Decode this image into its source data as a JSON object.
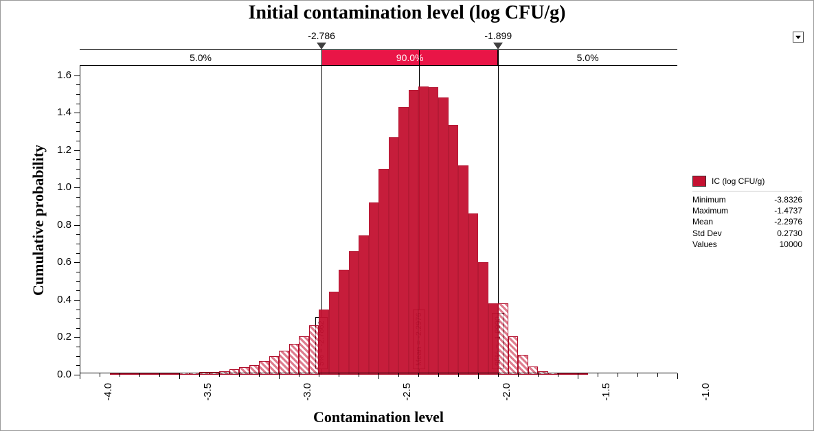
{
  "title": "Initial contamination level (log CFU/g)",
  "xlabel": "Contamination level",
  "ylabel": "Cumulative probability",
  "chart": {
    "type": "histogram",
    "bar_color": "#c41131",
    "bar_border_color": "#b00d2a",
    "tail_hatch": true,
    "background_color": "#ffffff",
    "xlim": [
      -4.0,
      -1.0
    ],
    "ylim": [
      0.0,
      1.65
    ],
    "xticks": [
      -4.0,
      -3.5,
      -3.0,
      -2.5,
      -2.0,
      -1.5,
      -1.0
    ],
    "xticklabels": [
      "-4.0",
      "-3.5",
      "-3.0",
      "-2.5",
      "-2.0",
      "-1.5",
      "-1.0"
    ],
    "yticks": [
      0.0,
      0.2,
      0.4,
      0.6,
      0.8,
      1.0,
      1.2,
      1.4,
      1.6
    ],
    "yticklabels": [
      "0.0",
      "0.2",
      "0.4",
      "0.6",
      "0.8",
      "1.0",
      "1.2",
      "1.4",
      "1.6"
    ],
    "xminor_per_major": 5,
    "yminor_per_major": 4,
    "axis_fontsize": 15,
    "label_fontsize": 22,
    "title_fontsize": 28,
    "bin_width": 0.05,
    "bins": [
      {
        "x": -3.85,
        "h": 0.004
      },
      {
        "x": -3.8,
        "h": 0.005
      },
      {
        "x": -3.75,
        "h": 0.005
      },
      {
        "x": -3.7,
        "h": 0.005
      },
      {
        "x": -3.65,
        "h": 0.006
      },
      {
        "x": -3.6,
        "h": 0.007
      },
      {
        "x": -3.55,
        "h": 0.008
      },
      {
        "x": -3.5,
        "h": 0.01
      },
      {
        "x": -3.45,
        "h": 0.01
      },
      {
        "x": -3.4,
        "h": 0.014
      },
      {
        "x": -3.35,
        "h": 0.016
      },
      {
        "x": -3.3,
        "h": 0.02
      },
      {
        "x": -3.25,
        "h": 0.03
      },
      {
        "x": -3.2,
        "h": 0.04
      },
      {
        "x": -3.15,
        "h": 0.052
      },
      {
        "x": -3.1,
        "h": 0.075
      },
      {
        "x": -3.05,
        "h": 0.1
      },
      {
        "x": -3.0,
        "h": 0.13
      },
      {
        "x": -2.95,
        "h": 0.165
      },
      {
        "x": -2.9,
        "h": 0.205
      },
      {
        "x": -2.85,
        "h": 0.265
      },
      {
        "x": -2.8,
        "h": 0.35
      },
      {
        "x": -2.75,
        "h": 0.445
      },
      {
        "x": -2.7,
        "h": 0.56
      },
      {
        "x": -2.65,
        "h": 0.66
      },
      {
        "x": -2.6,
        "h": 0.745
      },
      {
        "x": -2.55,
        "h": 0.92
      },
      {
        "x": -2.5,
        "h": 1.1
      },
      {
        "x": -2.45,
        "h": 1.27
      },
      {
        "x": -2.4,
        "h": 1.43
      },
      {
        "x": -2.35,
        "h": 1.52
      },
      {
        "x": -2.3,
        "h": 1.54
      },
      {
        "x": -2.25,
        "h": 1.535
      },
      {
        "x": -2.2,
        "h": 1.48
      },
      {
        "x": -2.15,
        "h": 1.335
      },
      {
        "x": -2.1,
        "h": 1.12
      },
      {
        "x": -2.05,
        "h": 0.86
      },
      {
        "x": -2.0,
        "h": 0.602
      },
      {
        "x": -1.95,
        "h": 0.38
      },
      {
        "x": -1.9,
        "h": 0.38
      },
      {
        "x": -1.85,
        "h": 0.205
      },
      {
        "x": -1.8,
        "h": 0.105
      },
      {
        "x": -1.75,
        "h": 0.045
      },
      {
        "x": -1.7,
        "h": 0.02
      },
      {
        "x": -1.65,
        "h": 0.012
      },
      {
        "x": -1.6,
        "h": 0.008
      },
      {
        "x": -1.55,
        "h": 0.006
      },
      {
        "x": -1.5,
        "h": 0.005
      }
    ]
  },
  "confidence_band": {
    "left_pct": "5.0%",
    "mid_pct": "90.0%",
    "right_pct": "5.0%",
    "left_marker_x": -2.786,
    "right_marker_x": -1.899,
    "left_marker_label": "-2.786",
    "right_marker_label": "-1.899",
    "band_color": "#e91547",
    "band_height": 22
  },
  "inline_labels": {
    "p5": "5% = -2.7862",
    "mean": "Mean = -2.2976",
    "p95": "95% = -1.8990",
    "p5_x": -2.786,
    "mean_x": -2.2976,
    "p95_x": -1.899
  },
  "legend": {
    "series_label": "IC (log CFU/g)",
    "swatch_color": "#c41131",
    "stats": [
      {
        "name": "Minimum",
        "value": "-3.8326"
      },
      {
        "name": "Maximum",
        "value": "-1.4737"
      },
      {
        "name": "Mean",
        "value": "-2.2976"
      },
      {
        "name": "Std Dev",
        "value": "0.2730"
      },
      {
        "name": "Values",
        "value": "10000"
      }
    ]
  }
}
